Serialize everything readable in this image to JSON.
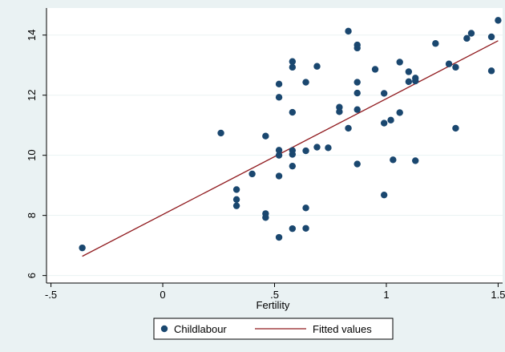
{
  "chart_data": {
    "type": "scatter",
    "xlabel": "Fertility",
    "ylabel": "",
    "xlim": [
      -0.52,
      1.52
    ],
    "ylim": [
      5.75,
      14.9
    ],
    "xticks": [
      {
        "value": -0.5,
        "label": "-.5"
      },
      {
        "value": 0,
        "label": "0"
      },
      {
        "value": 0.5,
        "label": ".5"
      },
      {
        "value": 1,
        "label": "1"
      },
      {
        "value": 1.5,
        "label": "1.5"
      }
    ],
    "yticks": [
      {
        "value": 6,
        "label": "6"
      },
      {
        "value": 8,
        "label": "8"
      },
      {
        "value": 10,
        "label": "10"
      },
      {
        "value": 12,
        "label": "12"
      },
      {
        "value": 14,
        "label": "14"
      }
    ],
    "grid": "horizontal",
    "legend_position": "bottom",
    "series": [
      {
        "name": "Childlabour",
        "kind": "scatter",
        "color": "#1a476f",
        "points": [
          [
            -0.36,
            6.92
          ],
          [
            0.26,
            10.74
          ],
          [
            0.33,
            8.86
          ],
          [
            0.33,
            8.53
          ],
          [
            0.33,
            8.32
          ],
          [
            0.4,
            9.38
          ],
          [
            0.46,
            10.64
          ],
          [
            0.46,
            8.06
          ],
          [
            0.46,
            7.93
          ],
          [
            0.52,
            12.37
          ],
          [
            0.52,
            11.93
          ],
          [
            0.52,
            10.17
          ],
          [
            0.52,
            10.0
          ],
          [
            0.52,
            9.31
          ],
          [
            0.52,
            7.27
          ],
          [
            0.58,
            13.12
          ],
          [
            0.58,
            12.93
          ],
          [
            0.58,
            11.43
          ],
          [
            0.58,
            10.16
          ],
          [
            0.58,
            10.03
          ],
          [
            0.58,
            9.64
          ],
          [
            0.58,
            7.56
          ],
          [
            0.64,
            12.43
          ],
          [
            0.64,
            10.15
          ],
          [
            0.64,
            8.25
          ],
          [
            0.64,
            7.57
          ],
          [
            0.69,
            12.96
          ],
          [
            0.69,
            10.27
          ],
          [
            0.74,
            10.25
          ],
          [
            0.79,
            11.6
          ],
          [
            0.79,
            11.45
          ],
          [
            0.83,
            14.13
          ],
          [
            0.83,
            10.9
          ],
          [
            0.87,
            13.67
          ],
          [
            0.87,
            13.57
          ],
          [
            0.87,
            12.43
          ],
          [
            0.87,
            12.07
          ],
          [
            0.87,
            11.52
          ],
          [
            0.87,
            9.71
          ],
          [
            0.95,
            12.86
          ],
          [
            0.99,
            12.06
          ],
          [
            0.99,
            11.07
          ],
          [
            0.99,
            8.68
          ],
          [
            1.02,
            11.17
          ],
          [
            1.03,
            9.85
          ],
          [
            1.06,
            13.1
          ],
          [
            1.06,
            11.42
          ],
          [
            1.1,
            12.78
          ],
          [
            1.1,
            12.45
          ],
          [
            1.13,
            12.57
          ],
          [
            1.13,
            12.47
          ],
          [
            1.13,
            9.82
          ],
          [
            1.22,
            13.72
          ],
          [
            1.28,
            13.04
          ],
          [
            1.31,
            12.93
          ],
          [
            1.31,
            10.9
          ],
          [
            1.36,
            13.89
          ],
          [
            1.38,
            14.06
          ],
          [
            1.47,
            13.94
          ],
          [
            1.47,
            12.81
          ],
          [
            1.5,
            14.49
          ]
        ]
      },
      {
        "name": "Fitted values",
        "kind": "line",
        "color": "#901a1e",
        "points": [
          [
            -0.36,
            6.64
          ],
          [
            1.5,
            13.81
          ]
        ]
      }
    ]
  }
}
